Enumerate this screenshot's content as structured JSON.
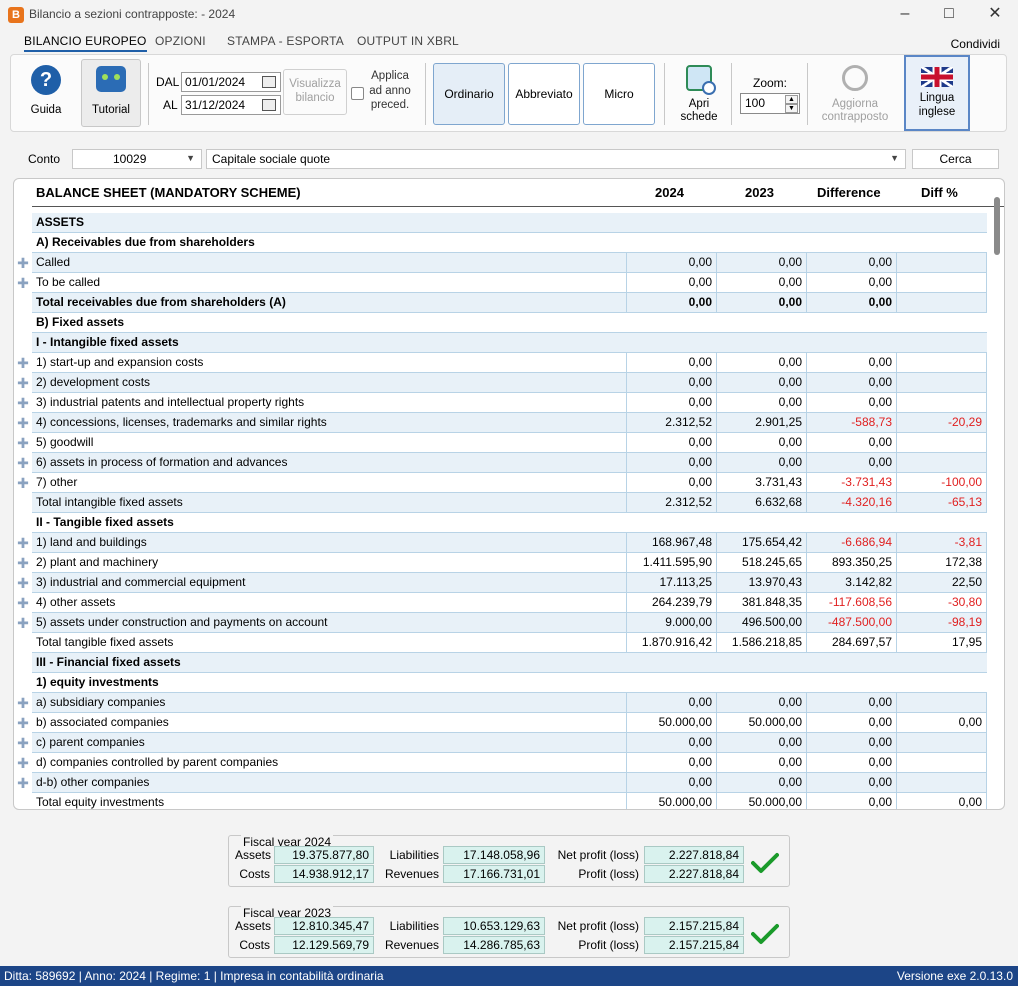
{
  "window": {
    "title": "Bilancio a sezioni contrapposte:  - 2024",
    "app_icon": "B"
  },
  "tabs": [
    {
      "label": "BILANCIO EUROPEO",
      "active": true
    },
    {
      "label": "OPZIONI",
      "active": false
    },
    {
      "label": "STAMPA - ESPORTA",
      "active": false
    },
    {
      "label": "OUTPUT IN XBRL",
      "active": false
    }
  ],
  "share_label": "Condividi",
  "ribbon": {
    "guida": "Guida",
    "tutorial": "Tutorial",
    "dal_label": "DAL",
    "al_label": "AL",
    "dal_value": "01/01/2024",
    "al_value": "31/12/2024",
    "visualizza_line1": "Visualizza",
    "visualizza_line2": "bilancio",
    "applica_line1": "Applica",
    "applica_line2": "ad anno",
    "applica_line3": "preced.",
    "ordinario": "Ordinario",
    "abbreviato": "Abbreviato",
    "micro": "Micro",
    "apri_line1": "Apri",
    "apri_line2": "schede",
    "zoom_label": "Zoom:",
    "zoom_value": "100",
    "aggiorna_line1": "Aggiorna",
    "aggiorna_line2": "contrapposto",
    "lingua_line1": "Lingua",
    "lingua_line2": "inglese"
  },
  "conto": {
    "label": "Conto",
    "code": "10029",
    "description": "Capitale sociale quote",
    "search": "Cerca"
  },
  "grid": {
    "title": "BALANCE SHEET (MANDATORY SCHEME)",
    "col_2024": "2024",
    "col_2023": "2023",
    "col_diff": "Difference",
    "col_diffp": "Diff %",
    "rows": [
      {
        "label": "ASSETS",
        "type": "header",
        "drag": false
      },
      {
        "label": "A) Receivables due from shareholders",
        "type": "header",
        "drag": false
      },
      {
        "label": "Called",
        "v1": "0,00",
        "v2": "0,00",
        "v3": "0,00",
        "v4": "",
        "drag": true
      },
      {
        "label": "To be called",
        "v1": "0,00",
        "v2": "0,00",
        "v3": "0,00",
        "v4": "",
        "drag": true
      },
      {
        "label": "Total receivables due from shareholders (A)",
        "v1": "0,00",
        "v2": "0,00",
        "v3": "0,00",
        "v4": "",
        "type": "total-bold",
        "drag": false
      },
      {
        "label": "B) Fixed assets",
        "type": "header",
        "drag": false
      },
      {
        "label": "I - Intangible fixed assets",
        "type": "header",
        "drag": false
      },
      {
        "label": "1) start-up and expansion costs",
        "v1": "0,00",
        "v2": "0,00",
        "v3": "0,00",
        "v4": "",
        "drag": true
      },
      {
        "label": "2) development costs",
        "v1": "0,00",
        "v2": "0,00",
        "v3": "0,00",
        "v4": "",
        "drag": true
      },
      {
        "label": "3) industrial patents and intellectual property rights",
        "v1": "0,00",
        "v2": "0,00",
        "v3": "0,00",
        "v4": "",
        "drag": true
      },
      {
        "label": "4) concessions, licenses, trademarks and similar rights",
        "v1": "2.312,52",
        "v2": "2.901,25",
        "v3": "-588,73",
        "v4": "-20,29",
        "drag": true
      },
      {
        "label": "5) goodwill",
        "v1": "0,00",
        "v2": "0,00",
        "v3": "0,00",
        "v4": "",
        "drag": true
      },
      {
        "label": "6) assets in process of formation and advances",
        "v1": "0,00",
        "v2": "0,00",
        "v3": "0,00",
        "v4": "",
        "drag": true
      },
      {
        "label": "7) other",
        "v1": "0,00",
        "v2": "3.731,43",
        "v3": "-3.731,43",
        "v4": "-100,00",
        "drag": true
      },
      {
        "label": "Total intangible fixed assets",
        "v1": "2.312,52",
        "v2": "6.632,68",
        "v3": "-4.320,16",
        "v4": "-65,13",
        "drag": false
      },
      {
        "label": "II - Tangible fixed assets",
        "type": "header",
        "drag": false
      },
      {
        "label": "1) land and buildings",
        "v1": "168.967,48",
        "v2": "175.654,42",
        "v3": "-6.686,94",
        "v4": "-3,81",
        "drag": true
      },
      {
        "label": "2) plant and machinery",
        "v1": "1.411.595,90",
        "v2": "518.245,65",
        "v3": "893.350,25",
        "v4": "172,38",
        "drag": true
      },
      {
        "label": "3) industrial and commercial equipment",
        "v1": "17.113,25",
        "v2": "13.970,43",
        "v3": "3.142,82",
        "v4": "22,50",
        "drag": true
      },
      {
        "label": "4) other assets",
        "v1": "264.239,79",
        "v2": "381.848,35",
        "v3": "-117.608,56",
        "v4": "-30,80",
        "drag": true
      },
      {
        "label": "5) assets under construction and payments on account",
        "v1": "9.000,00",
        "v2": "496.500,00",
        "v3": "-487.500,00",
        "v4": "-98,19",
        "drag": true
      },
      {
        "label": "Total tangible fixed assets",
        "v1": "1.870.916,42",
        "v2": "1.586.218,85",
        "v3": "284.697,57",
        "v4": "17,95",
        "drag": false
      },
      {
        "label": "III - Financial fixed assets",
        "type": "header",
        "drag": false
      },
      {
        "label": "1) equity investments",
        "type": "header",
        "drag": false
      },
      {
        "label": "a) subsidiary companies",
        "v1": "0,00",
        "v2": "0,00",
        "v3": "0,00",
        "v4": "",
        "drag": true
      },
      {
        "label": "b) associated companies",
        "v1": "50.000,00",
        "v2": "50.000,00",
        "v3": "0,00",
        "v4": "0,00",
        "drag": true
      },
      {
        "label": "c) parent companies",
        "v1": "0,00",
        "v2": "0,00",
        "v3": "0,00",
        "v4": "",
        "drag": true
      },
      {
        "label": "d) companies controlled by parent companies",
        "v1": "0,00",
        "v2": "0,00",
        "v3": "0,00",
        "v4": "",
        "drag": true
      },
      {
        "label": "d-b) other companies",
        "v1": "0,00",
        "v2": "0,00",
        "v3": "0,00",
        "v4": "",
        "drag": true
      },
      {
        "label": "Total equity investments",
        "v1": "50.000,00",
        "v2": "50.000,00",
        "v3": "0,00",
        "v4": "0,00",
        "drag": false
      }
    ]
  },
  "fiscal": [
    {
      "title": "Fiscal year 2024",
      "assets_label": "Assets",
      "assets": "19.375.877,80",
      "costs_label": "Costs",
      "costs": "14.938.912,17",
      "liabilities_label": "Liabilities",
      "liabilities": "17.148.058,96",
      "revenues_label": "Revenues",
      "revenues": "17.166.731,01",
      "net_label": "Net profit (loss)",
      "net": "2.227.818,84",
      "profit_label": "Profit (loss)",
      "profit": "2.227.818,84"
    },
    {
      "title": "Fiscal year 2023",
      "assets_label": "Assets",
      "assets": "12.810.345,47",
      "costs_label": "Costs",
      "costs": "12.129.569,79",
      "liabilities_label": "Liabilities",
      "liabilities": "10.653.129,63",
      "revenues_label": "Revenues",
      "revenues": "14.286.785,63",
      "net_label": "Net profit (loss)",
      "net": "2.157.215,84",
      "profit_label": "Profit (loss)",
      "profit": "2.157.215,84"
    }
  ],
  "status": {
    "left": "Ditta: 589692  |  Anno: 2024  |  Regime: 1  |  Impresa in contabilità ordinaria",
    "right": "Versione exe 2.0.13.0"
  },
  "colors": {
    "accent": "#1f5fa8",
    "negative": "#e02020",
    "status_bar": "#1c4587",
    "check": "#1a9a2a"
  }
}
